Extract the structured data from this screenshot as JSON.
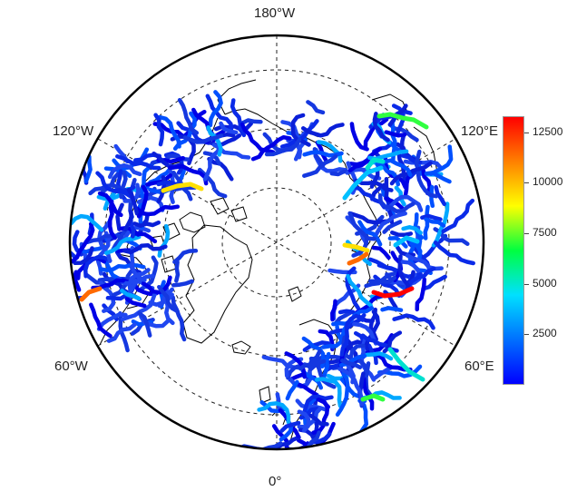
{
  "labels": {
    "top": "180°W",
    "bottom": "0°",
    "top_left": "120°W",
    "bottom_left": "60°W",
    "top_right": "120°E",
    "bottom_right": "60°E"
  },
  "colorbar": {
    "min": 0,
    "max": 13300,
    "ticks": [
      "2500",
      "5000",
      "7500",
      "10000",
      "12500"
    ],
    "tick_values": [
      2500,
      5000,
      7500,
      10000,
      12500
    ],
    "colors": [
      "#0000ff",
      "#0070ff",
      "#00e0ff",
      "#00ff40",
      "#ffff00",
      "#ff8000",
      "#ff0000"
    ]
  },
  "map": {
    "land_color": "#ffffff",
    "coast_color": "#000000",
    "river_base_color": "#1f3fd6",
    "graticule_style": "dashed"
  }
}
